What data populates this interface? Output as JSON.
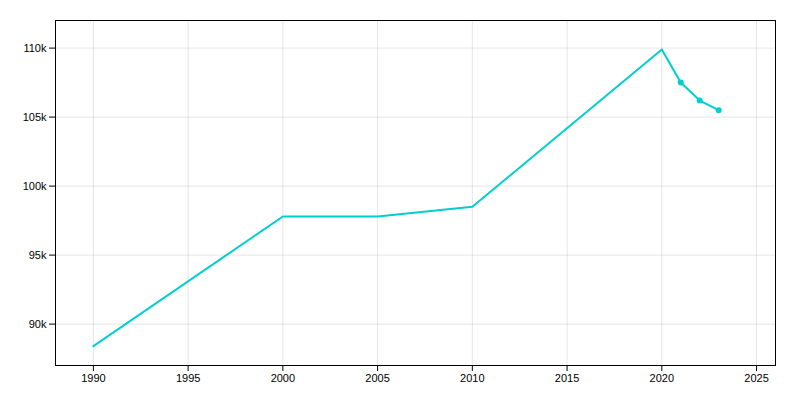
{
  "chart_data": {
    "type": "line",
    "x": [
      1990,
      2000,
      2005,
      2010,
      2020,
      2021,
      2022,
      2023
    ],
    "series": [
      {
        "type": "line",
        "color": "#00CED1",
        "values": [
          88400,
          97800,
          97800,
          98500,
          109900,
          107500,
          106200,
          105500
        ]
      },
      {
        "type": "scatter",
        "color": "#00CED1",
        "values": [
          null,
          null,
          null,
          null,
          null,
          107500,
          106200,
          105500
        ]
      }
    ],
    "xlim": [
      1988,
      2026
    ],
    "ylim": [
      87000,
      112000
    ],
    "xticks": [
      1990,
      1995,
      2000,
      2005,
      2010,
      2015,
      2020,
      2025
    ],
    "yticks": [
      {
        "value": 90000,
        "label": "90k"
      },
      {
        "value": 95000,
        "label": "95k"
      },
      {
        "value": 100000,
        "label": "100k"
      },
      {
        "value": 105000,
        "label": "105k"
      },
      {
        "value": 110000,
        "label": "110k"
      }
    ],
    "grid": true
  }
}
